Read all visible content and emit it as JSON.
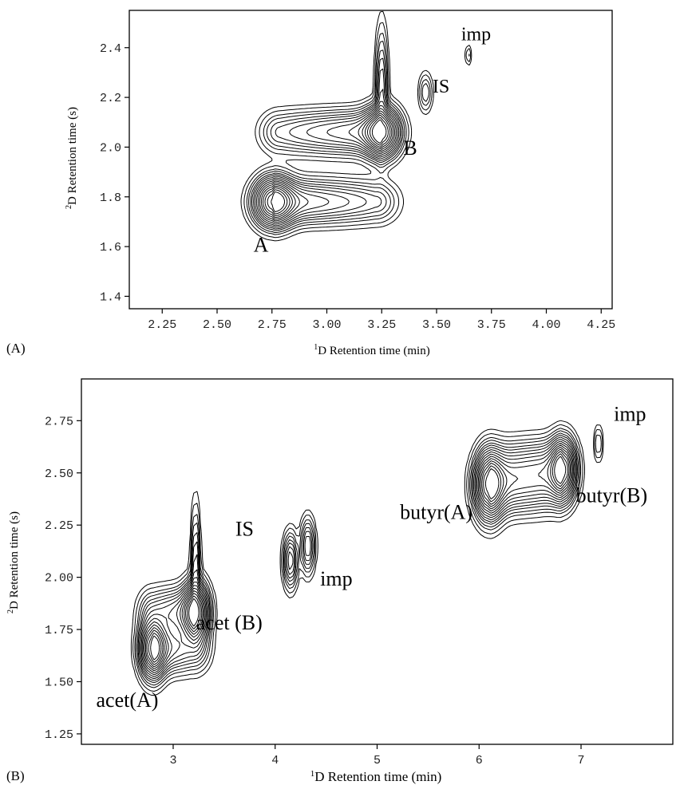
{
  "chart_data": [
    {
      "panel_label": "(A)",
      "type": "contour",
      "xlabel": "1D Retention time (min)",
      "xlabel_sup": "1",
      "xlabel_rest": "D Retention time (min)",
      "ylabel_sup": "2",
      "ylabel_rest": "D Retention time (s)",
      "xlim": [
        2.1,
        4.3
      ],
      "ylim": [
        1.35,
        2.55
      ],
      "x_ticks": [
        "2.25",
        "2.50",
        "2.75",
        "3.00",
        "3.25",
        "3.50",
        "3.75",
        "4.00",
        "4.25"
      ],
      "x_tick_values": [
        2.25,
        2.5,
        2.75,
        3.0,
        3.25,
        3.5,
        3.75,
        4.0,
        4.25
      ],
      "y_ticks": [
        "1.4",
        "1.6",
        "1.8",
        "2.0",
        "2.2",
        "2.4"
      ],
      "y_tick_values": [
        1.4,
        1.6,
        1.8,
        2.0,
        2.2,
        2.4
      ],
      "peaks": [
        {
          "x": 2.76,
          "y": 1.78,
          "sx": 0.05,
          "sy": 0.055,
          "amp": 1.0,
          "tail": 0.46,
          "tail_sy": 0.048,
          "spike": 0.0
        },
        {
          "x": 3.25,
          "y": 2.06,
          "sx": 0.045,
          "sy": 0.055,
          "amp": 1.0,
          "tail": -0.46,
          "tail_sy": 0.048,
          "spike": 0.33
        },
        {
          "x": 3.45,
          "y": 2.22,
          "sx": 0.018,
          "sy": 0.045,
          "amp": 0.14,
          "tail": 0,
          "tail_sy": 0,
          "spike": 0
        },
        {
          "x": 3.645,
          "y": 2.37,
          "sx": 0.008,
          "sy": 0.025,
          "amp": 0.08,
          "tail": 0,
          "tail_sy": 0,
          "spike": 0
        }
      ],
      "annotations": [
        {
          "text": "A",
          "x": 2.7,
          "y": 1.58,
          "size": 26
        },
        {
          "text": "B",
          "x": 3.38,
          "y": 1.97,
          "size": 26
        },
        {
          "text": "IS",
          "x": 3.52,
          "y": 2.22,
          "size": 24
        },
        {
          "text": "imp",
          "x": 3.68,
          "y": 2.43,
          "size": 24
        }
      ]
    },
    {
      "panel_label": "(B)",
      "type": "contour",
      "xlabel": "1D Retention time (min)",
      "xlabel_sup": "1",
      "xlabel_rest": "D Retention time (min)",
      "ylabel_sup": "2",
      "ylabel_rest": "D Retention time (s)",
      "xlim": [
        2.1,
        7.9
      ],
      "ylim": [
        1.2,
        2.95
      ],
      "x_ticks": [
        "3",
        "4",
        "5",
        "6",
        "7"
      ],
      "x_tick_values": [
        3,
        4,
        5,
        6,
        7
      ],
      "y_ticks": [
        "1.25",
        "1.50",
        "1.75",
        "2.00",
        "2.25",
        "2.50",
        "2.75"
      ],
      "y_tick_values": [
        1.25,
        1.5,
        1.75,
        2.0,
        2.25,
        2.5,
        2.75
      ],
      "peaks": [
        {
          "x": 2.8,
          "y": 1.66,
          "sx": 0.07,
          "sy": 0.08,
          "amp": 1.0,
          "tail": 0.42,
          "tail_sy": 0.065,
          "spike": 0
        },
        {
          "x": 3.22,
          "y": 1.83,
          "sx": 0.07,
          "sy": 0.08,
          "amp": 1.0,
          "tail": -0.42,
          "tail_sy": 0.065,
          "spike": 0.4
        },
        {
          "x": 4.15,
          "y": 2.08,
          "sx": 0.04,
          "sy": 0.075,
          "amp": 0.35,
          "tail": 0,
          "tail_sy": 0,
          "spike": 0
        },
        {
          "x": 4.32,
          "y": 2.15,
          "sx": 0.04,
          "sy": 0.075,
          "amp": 0.3,
          "tail": 0,
          "tail_sy": 0,
          "spike": 0
        },
        {
          "x": 6.1,
          "y": 2.44,
          "sx": 0.08,
          "sy": 0.09,
          "amp": 1.0,
          "tail": 0.65,
          "tail_sy": 0.075,
          "spike": 0
        },
        {
          "x": 6.82,
          "y": 2.52,
          "sx": 0.07,
          "sy": 0.08,
          "amp": 1.0,
          "tail": -0.68,
          "tail_sy": 0.075,
          "spike": 0
        },
        {
          "x": 7.17,
          "y": 2.64,
          "sx": 0.025,
          "sy": 0.05,
          "amp": 0.12,
          "tail": 0,
          "tail_sy": 0,
          "spike": 0
        }
      ],
      "annotations": [
        {
          "text": "acet(A)",
          "x": 2.55,
          "y": 1.38,
          "size": 26
        },
        {
          "text": "acet (B)",
          "x": 3.55,
          "y": 1.75,
          "size": 26
        },
        {
          "text": "IS",
          "x": 3.7,
          "y": 2.2,
          "size": 26
        },
        {
          "text": "imp",
          "x": 4.6,
          "y": 1.96,
          "size": 26
        },
        {
          "text": "butyr(A)",
          "x": 5.58,
          "y": 2.28,
          "size": 26
        },
        {
          "text": "butyr(B)",
          "x": 7.3,
          "y": 2.36,
          "size": 26
        },
        {
          "text": "imp",
          "x": 7.48,
          "y": 2.75,
          "size": 26
        }
      ]
    }
  ]
}
